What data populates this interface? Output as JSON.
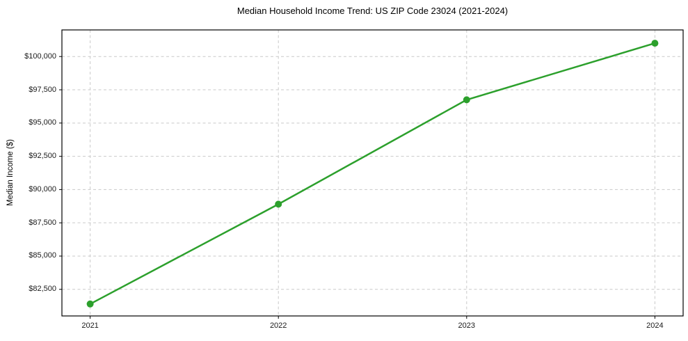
{
  "chart_data": {
    "type": "line",
    "title": "Median Household Income Trend: US ZIP Code 23024 (2021-2024)",
    "xlabel": "",
    "ylabel": "Median Income ($)",
    "x": [
      2021,
      2022,
      2023,
      2024
    ],
    "xtick_labels": [
      "2021",
      "2022",
      "2023",
      "2024"
    ],
    "values": [
      81400,
      88900,
      96750,
      101000
    ],
    "yticks": [
      82500,
      85000,
      87500,
      90000,
      92500,
      95000,
      97500,
      100000
    ],
    "ytick_labels": [
      "$82,500",
      "$85,000",
      "$87,500",
      "$90,000",
      "$92,500",
      "$95,000",
      "$97,500",
      "$100,000"
    ],
    "ylim": [
      80500,
      102000
    ],
    "xlim": [
      2020.85,
      2024.15
    ],
    "grid": true,
    "grid_style": "dashed",
    "legend_position": "none",
    "marker": "circle",
    "colors": {
      "line": "#2ca02c",
      "marker": "#2ca02c",
      "grid": "#c9c9c9",
      "axis": "#000000",
      "tick_text": "#1a1a1a",
      "background": "#ffffff"
    }
  }
}
